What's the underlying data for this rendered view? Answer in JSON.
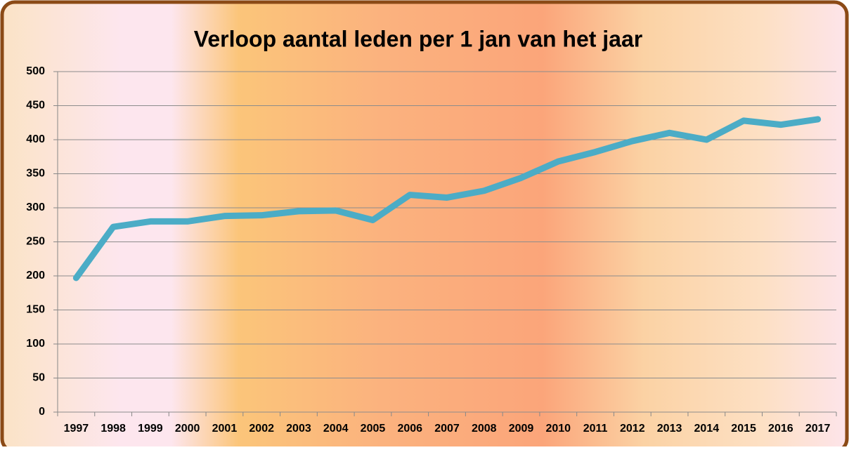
{
  "chart_data": {
    "type": "line",
    "title": "Verloop aantal leden per 1 jan van het jaar",
    "categories": [
      "1997",
      "1998",
      "1999",
      "2000",
      "2001",
      "2002",
      "2003",
      "2004",
      "2005",
      "2006",
      "2007",
      "2008",
      "2009",
      "2010",
      "2011",
      "2012",
      "2013",
      "2014",
      "2015",
      "2016",
      "2017"
    ],
    "values": [
      197,
      272,
      280,
      280,
      288,
      289,
      295,
      296,
      282,
      319,
      315,
      325,
      344,
      368,
      382,
      398,
      410,
      400,
      428,
      422,
      430
    ],
    "color": "#4bacc6",
    "ylim": [
      0,
      500
    ],
    "yticks": [
      0,
      50,
      100,
      150,
      200,
      250,
      300,
      350,
      400,
      450,
      500
    ],
    "grid": true
  }
}
